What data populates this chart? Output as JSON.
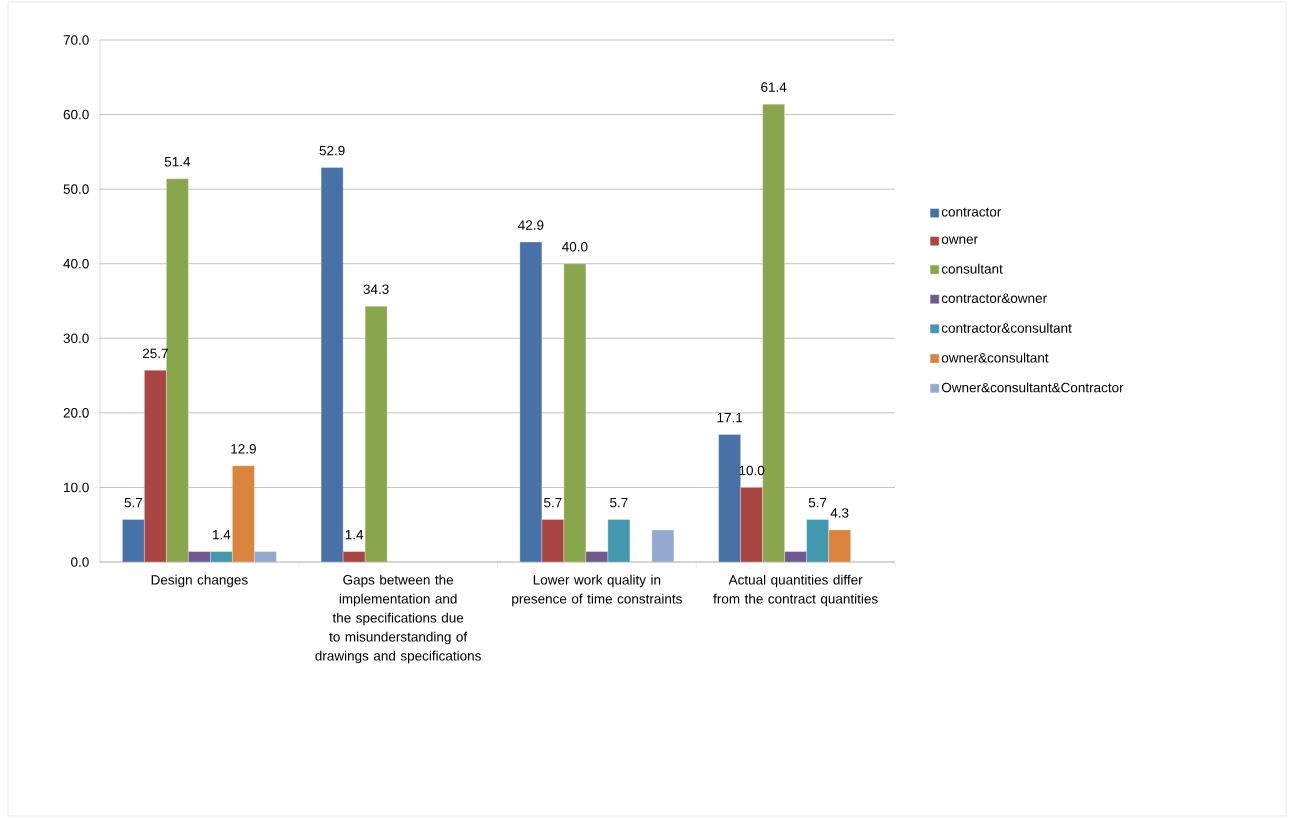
{
  "chart_data": {
    "type": "bar",
    "categories": [
      "Design changes",
      "Gaps between the implementation and the specifications due to misunderstanding of drawings and specifications",
      "Lower work quality in presence of time constraints",
      "Actual quantities differ from the contract quantities"
    ],
    "series": [
      {
        "name": "contractor",
        "color": "#4672a8",
        "values": [
          5.7,
          52.9,
          42.9,
          17.1
        ],
        "value_labels": [
          "5.7",
          "52.9",
          "42.9",
          "17.1"
        ]
      },
      {
        "name": "owner",
        "color": "#a94543",
        "values": [
          25.7,
          1.4,
          5.7,
          10.0
        ],
        "value_labels": [
          "25.7",
          "1.4",
          "5.7",
          "10.0"
        ]
      },
      {
        "name": "consultant",
        "color": "#8aa64c",
        "values": [
          51.4,
          34.3,
          40.0,
          61.4
        ],
        "value_labels": [
          "51.4",
          "34.3",
          "40.0",
          "61.4"
        ]
      },
      {
        "name": "contractor&owner",
        "color": "#71588f",
        "values": [
          1.4,
          null,
          1.4,
          1.4
        ],
        "value_labels": [
          null,
          null,
          null,
          null
        ]
      },
      {
        "name": "contractor&consultant",
        "color": "#4198af",
        "values": [
          1.4,
          null,
          5.7,
          5.7
        ],
        "value_labels": [
          "1.4",
          null,
          "5.7",
          "5.7"
        ]
      },
      {
        "name": "owner&consultant",
        "color": "#db843d",
        "values": [
          12.9,
          null,
          null,
          4.3
        ],
        "value_labels": [
          "12.9",
          null,
          null,
          "4.3"
        ]
      },
      {
        "name": "Owner&consultant&Contractor",
        "color": "#93a9cf",
        "values": [
          1.4,
          null,
          4.3,
          null
        ],
        "value_labels": [
          null,
          null,
          null,
          null
        ]
      }
    ],
    "ylim": [
      0,
      70
    ],
    "yticks": [
      {
        "value": 0,
        "label": "0.0"
      },
      {
        "value": 10,
        "label": "10.0"
      },
      {
        "value": 20,
        "label": "20.0"
      },
      {
        "value": 30,
        "label": "30.0"
      },
      {
        "value": 40,
        "label": "40.0"
      },
      {
        "value": 50,
        "label": "50.0"
      },
      {
        "value": 60,
        "label": "60.0"
      },
      {
        "value": 70,
        "label": "70.0"
      }
    ],
    "grid": "y",
    "legend": "right"
  }
}
